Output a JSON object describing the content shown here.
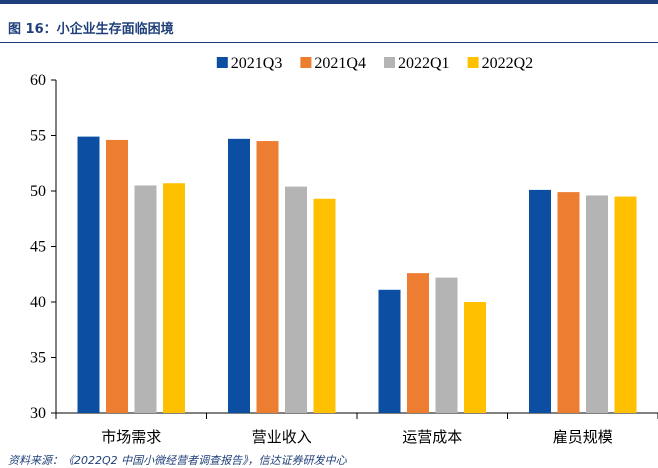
{
  "figure": {
    "title": "图 16：小企业生存面临困境",
    "source": "资料来源：《2022Q2 中国小微经营者调查报告》，信达证券研发中心"
  },
  "chart_data": {
    "type": "bar",
    "categories": [
      "市场需求",
      "营业收入",
      "运营成本",
      "雇员规模"
    ],
    "series": [
      {
        "name": "2021Q3",
        "color": "#0b4ea2",
        "values": [
          54.9,
          54.7,
          41.1,
          50.1
        ]
      },
      {
        "name": "2021Q4",
        "color": "#ed7d31",
        "values": [
          54.6,
          54.5,
          42.6,
          49.9
        ]
      },
      {
        "name": "2022Q1",
        "color": "#b4b4b4",
        "values": [
          50.5,
          50.4,
          42.2,
          49.6
        ]
      },
      {
        "name": "2022Q2",
        "color": "#ffc000",
        "values": [
          50.7,
          49.3,
          40.0,
          49.5
        ]
      }
    ],
    "ylim": [
      30,
      60
    ],
    "yticks": [
      30,
      35,
      40,
      45,
      50,
      55,
      60
    ],
    "legend": "top-center",
    "grid": false
  }
}
